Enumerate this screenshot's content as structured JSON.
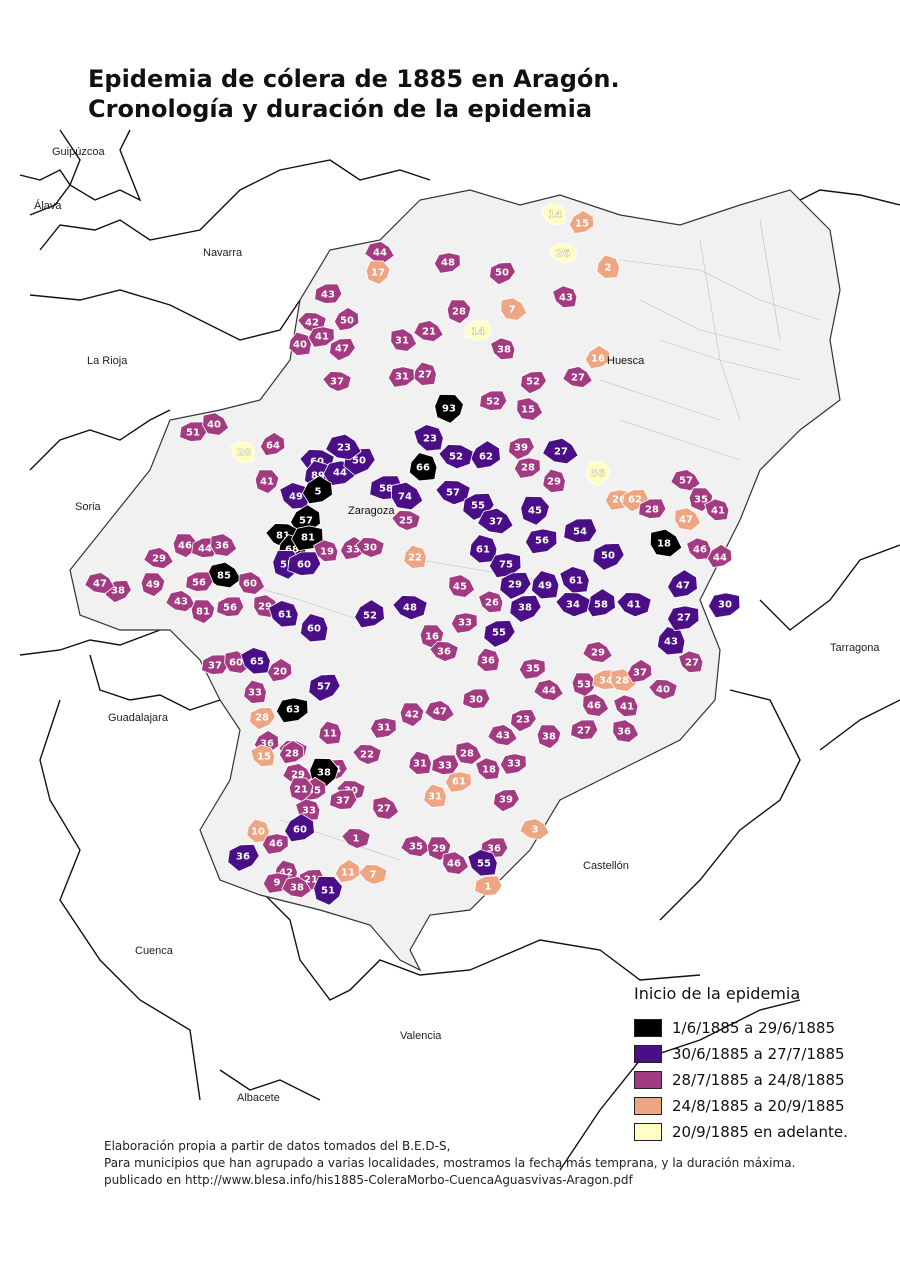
{
  "title": {
    "line1": "Epidemia de cólera de 1885 en Aragón.",
    "line2": "Cronología y duración de la epidemia"
  },
  "regions": [
    {
      "id": "guipuzcoa",
      "label": "Guipúzcoa"
    },
    {
      "id": "alava",
      "label": "Álava"
    },
    {
      "id": "navarra",
      "label": "Navarra"
    },
    {
      "id": "larioja",
      "label": "La Rioja"
    },
    {
      "id": "soria",
      "label": "Soria"
    },
    {
      "id": "guadalajara",
      "label": "Guadalajara"
    },
    {
      "id": "cuenca",
      "label": "Cuenca"
    },
    {
      "id": "valencia",
      "label": "Valencia"
    },
    {
      "id": "albacete",
      "label": "Albacete"
    },
    {
      "id": "castellon",
      "label": "Castellón"
    },
    {
      "id": "tarragona",
      "label": "Tarragona"
    }
  ],
  "towns": [
    {
      "id": "huesca",
      "label": "Huesca"
    },
    {
      "id": "zaragoza",
      "label": "Zaragoza"
    }
  ],
  "colors": {
    "black": "#000000",
    "purple": "#4a0f86",
    "magenta": "#a23b82",
    "salmon": "#eea582",
    "cream": "#ffffc4",
    "empty": "#f0f0f0",
    "border": "#222222"
  },
  "legend": {
    "title": "Inicio de la epidemia",
    "items": [
      {
        "label": "1/6/1885 a 29/6/1885",
        "color": "#000000"
      },
      {
        "label": "30/6/1885 a 27/7/1885",
        "color": "#4a0f86"
      },
      {
        "label": "28/7/1885 a 24/8/1885",
        "color": "#a23b82"
      },
      {
        "label": "24/8/1885 a 20/9/1885",
        "color": "#eea582"
      },
      {
        "label": "20/9/1885 en adelante.",
        "color": "#ffffc4"
      }
    ]
  },
  "districts": [
    {
      "cat": "cream",
      "value": "14"
    },
    {
      "cat": "salmon",
      "value": "15"
    },
    {
      "cat": "cream",
      "value": "26"
    },
    {
      "cat": "salmon",
      "value": "2"
    },
    {
      "cat": "magenta",
      "value": "48"
    },
    {
      "cat": "magenta",
      "value": "50"
    },
    {
      "cat": "magenta",
      "value": "44"
    },
    {
      "cat": "salmon",
      "value": "17"
    },
    {
      "cat": "magenta",
      "value": "43"
    },
    {
      "cat": "salmon",
      "value": "7"
    },
    {
      "cat": "magenta",
      "value": "43"
    },
    {
      "cat": "magenta",
      "value": "50"
    },
    {
      "cat": "magenta",
      "value": "42"
    },
    {
      "cat": "magenta",
      "value": "40"
    },
    {
      "cat": "magenta",
      "value": "41"
    },
    {
      "cat": "magenta",
      "value": "47"
    },
    {
      "cat": "magenta",
      "value": "21"
    },
    {
      "cat": "magenta",
      "value": "28"
    },
    {
      "cat": "cream",
      "value": "14"
    },
    {
      "cat": "magenta",
      "value": "31"
    },
    {
      "cat": "magenta",
      "value": "38"
    },
    {
      "cat": "salmon",
      "value": "16"
    },
    {
      "cat": "magenta",
      "value": "37"
    },
    {
      "cat": "magenta",
      "value": "27"
    },
    {
      "cat": "magenta",
      "value": "31"
    },
    {
      "cat": "magenta",
      "value": "52"
    },
    {
      "cat": "magenta",
      "value": "27"
    },
    {
      "cat": "black",
      "value": "93"
    },
    {
      "cat": "magenta",
      "value": "52"
    },
    {
      "cat": "magenta",
      "value": "15"
    },
    {
      "cat": "purple",
      "value": "23"
    },
    {
      "cat": "purple",
      "value": "62"
    },
    {
      "cat": "purple",
      "value": "52"
    },
    {
      "cat": "black",
      "value": "66"
    },
    {
      "cat": "magenta",
      "value": "28"
    },
    {
      "cat": "magenta",
      "value": "39"
    },
    {
      "cat": "purple",
      "value": "27"
    },
    {
      "cat": "cream",
      "value": "56"
    },
    {
      "cat": "magenta",
      "value": "51"
    },
    {
      "cat": "magenta",
      "value": "40"
    },
    {
      "cat": "cream",
      "value": "28"
    },
    {
      "cat": "magenta",
      "value": "64"
    },
    {
      "cat": "purple",
      "value": "60"
    },
    {
      "cat": "purple",
      "value": "89"
    },
    {
      "cat": "purple",
      "value": "44"
    },
    {
      "cat": "purple",
      "value": "50"
    },
    {
      "cat": "purple",
      "value": "23"
    },
    {
      "cat": "magenta",
      "value": "41"
    },
    {
      "cat": "purple",
      "value": "58"
    },
    {
      "cat": "purple",
      "value": "74"
    },
    {
      "cat": "purple",
      "value": "49"
    },
    {
      "cat": "black",
      "value": "5"
    },
    {
      "cat": "purple",
      "value": "57"
    },
    {
      "cat": "magenta",
      "value": "29"
    },
    {
      "cat": "salmon",
      "value": "26"
    },
    {
      "cat": "salmon",
      "value": "62"
    },
    {
      "cat": "magenta",
      "value": "57"
    },
    {
      "cat": "magenta",
      "value": "35"
    },
    {
      "cat": "magenta",
      "value": "28"
    },
    {
      "cat": "salmon",
      "value": "47"
    },
    {
      "cat": "magenta",
      "value": "41"
    },
    {
      "cat": "black",
      "value": "57"
    },
    {
      "cat": "black",
      "value": "81"
    },
    {
      "cat": "black",
      "value": "68"
    },
    {
      "cat": "black",
      "value": "81"
    },
    {
      "cat": "purple",
      "value": "55"
    },
    {
      "cat": "purple",
      "value": "37"
    },
    {
      "cat": "purple",
      "value": "45"
    },
    {
      "cat": "purple",
      "value": "54"
    },
    {
      "cat": "black",
      "value": "18"
    },
    {
      "cat": "magenta",
      "value": "46"
    },
    {
      "cat": "magenta",
      "value": "44"
    },
    {
      "cat": "magenta",
      "value": "25"
    },
    {
      "cat": "purple",
      "value": "61"
    },
    {
      "cat": "purple",
      "value": "56"
    },
    {
      "cat": "purple",
      "value": "50"
    },
    {
      "cat": "magenta",
      "value": "29"
    },
    {
      "cat": "magenta",
      "value": "46"
    },
    {
      "cat": "magenta",
      "value": "44"
    },
    {
      "cat": "magenta",
      "value": "36"
    },
    {
      "cat": "magenta",
      "value": "19"
    },
    {
      "cat": "magenta",
      "value": "33"
    },
    {
      "cat": "magenta",
      "value": "30"
    },
    {
      "cat": "salmon",
      "value": "22"
    },
    {
      "cat": "purple",
      "value": "75"
    },
    {
      "cat": "purple",
      "value": "29"
    },
    {
      "cat": "black",
      "value": "85"
    },
    {
      "cat": "purple",
      "value": "55"
    },
    {
      "cat": "purple",
      "value": "60"
    },
    {
      "cat": "magenta",
      "value": "45"
    },
    {
      "cat": "purple",
      "value": "61"
    },
    {
      "cat": "purple",
      "value": "47"
    },
    {
      "cat": "purple",
      "value": "41"
    },
    {
      "cat": "purple",
      "value": "49"
    },
    {
      "cat": "purple",
      "value": "30"
    },
    {
      "cat": "magenta",
      "value": "38"
    },
    {
      "cat": "magenta",
      "value": "47"
    },
    {
      "cat": "magenta",
      "value": "49"
    },
    {
      "cat": "magenta",
      "value": "56"
    },
    {
      "cat": "magenta",
      "value": "60"
    },
    {
      "cat": "magenta",
      "value": "26"
    },
    {
      "cat": "purple",
      "value": "58"
    },
    {
      "cat": "purple",
      "value": "34"
    },
    {
      "cat": "purple",
      "value": "43"
    },
    {
      "cat": "purple",
      "value": "27"
    },
    {
      "cat": "purple",
      "value": "38"
    },
    {
      "cat": "magenta",
      "value": "43"
    },
    {
      "cat": "magenta",
      "value": "81"
    },
    {
      "cat": "magenta",
      "value": "56"
    },
    {
      "cat": "magenta",
      "value": "29"
    },
    {
      "cat": "purple",
      "value": "61"
    },
    {
      "cat": "purple",
      "value": "52"
    },
    {
      "cat": "purple",
      "value": "48"
    },
    {
      "cat": "purple",
      "value": "60"
    },
    {
      "cat": "magenta",
      "value": "33"
    },
    {
      "cat": "purple",
      "value": "55"
    },
    {
      "cat": "magenta",
      "value": "29"
    },
    {
      "cat": "magenta",
      "value": "16"
    },
    {
      "cat": "magenta",
      "value": "37"
    },
    {
      "cat": "magenta",
      "value": "60"
    },
    {
      "cat": "purple",
      "value": "65"
    },
    {
      "cat": "magenta",
      "value": "20"
    },
    {
      "cat": "magenta",
      "value": "36"
    },
    {
      "cat": "magenta",
      "value": "36"
    },
    {
      "cat": "magenta",
      "value": "35"
    },
    {
      "cat": "purple",
      "value": "57"
    },
    {
      "cat": "magenta",
      "value": "44"
    },
    {
      "cat": "magenta",
      "value": "53"
    },
    {
      "cat": "salmon",
      "value": "34"
    },
    {
      "cat": "salmon",
      "value": "28"
    },
    {
      "cat": "magenta",
      "value": "27"
    },
    {
      "cat": "magenta",
      "value": "37"
    },
    {
      "cat": "magenta",
      "value": "40"
    },
    {
      "cat": "magenta",
      "value": "33"
    },
    {
      "cat": "black",
      "value": "63"
    },
    {
      "cat": "salmon",
      "value": "28"
    },
    {
      "cat": "magenta",
      "value": "47"
    },
    {
      "cat": "magenta",
      "value": "42"
    },
    {
      "cat": "magenta",
      "value": "30"
    },
    {
      "cat": "magenta",
      "value": "46"
    },
    {
      "cat": "magenta",
      "value": "41"
    },
    {
      "cat": "magenta",
      "value": "36"
    },
    {
      "cat": "magenta",
      "value": "18"
    },
    {
      "cat": "magenta",
      "value": "11"
    },
    {
      "cat": "magenta",
      "value": "31"
    },
    {
      "cat": "magenta",
      "value": "23"
    },
    {
      "cat": "magenta",
      "value": "43"
    },
    {
      "cat": "magenta",
      "value": "38"
    },
    {
      "cat": "magenta",
      "value": "27"
    },
    {
      "cat": "magenta",
      "value": "36"
    },
    {
      "cat": "salmon",
      "value": "15"
    },
    {
      "cat": "magenta",
      "value": "28"
    },
    {
      "cat": "magenta",
      "value": "22"
    },
    {
      "cat": "magenta",
      "value": "31"
    },
    {
      "cat": "magenta",
      "value": "33"
    },
    {
      "cat": "magenta",
      "value": "24"
    },
    {
      "cat": "magenta",
      "value": "29"
    },
    {
      "cat": "black",
      "value": "38"
    },
    {
      "cat": "magenta",
      "value": "33"
    },
    {
      "cat": "magenta",
      "value": "28"
    },
    {
      "cat": "magenta",
      "value": "18"
    },
    {
      "cat": "magenta",
      "value": "35"
    },
    {
      "cat": "magenta",
      "value": "30"
    },
    {
      "cat": "salmon",
      "value": "31"
    },
    {
      "cat": "salmon",
      "value": "61"
    },
    {
      "cat": "magenta",
      "value": "39"
    },
    {
      "cat": "salmon",
      "value": "3"
    },
    {
      "cat": "magenta",
      "value": "21"
    },
    {
      "cat": "magenta",
      "value": "37"
    },
    {
      "cat": "magenta",
      "value": "27"
    },
    {
      "cat": "magenta",
      "value": "33"
    },
    {
      "cat": "purple",
      "value": "60"
    },
    {
      "cat": "magenta",
      "value": "1"
    },
    {
      "cat": "salmon",
      "value": "10"
    },
    {
      "cat": "magenta",
      "value": "46"
    },
    {
      "cat": "purple",
      "value": "36"
    },
    {
      "cat": "magenta",
      "value": "35"
    },
    {
      "cat": "magenta",
      "value": "29"
    },
    {
      "cat": "magenta",
      "value": "36"
    },
    {
      "cat": "magenta",
      "value": "46"
    },
    {
      "cat": "purple",
      "value": "55"
    },
    {
      "cat": "salmon",
      "value": "11"
    },
    {
      "cat": "salmon",
      "value": "7"
    },
    {
      "cat": "magenta",
      "value": "42"
    },
    {
      "cat": "magenta",
      "value": "9"
    },
    {
      "cat": "magenta",
      "value": "21"
    },
    {
      "cat": "magenta",
      "value": "38"
    },
    {
      "cat": "purple",
      "value": "51"
    },
    {
      "cat": "salmon",
      "value": "1"
    }
  ],
  "credits": {
    "line1": "Elaboración propia a partir de datos tomados del B.E.D-S,",
    "line2": "Para municipios que han agrupado a varias localidades, mostramos la fecha más temprana, y la duración máxima.",
    "line3": "publicado en http://www.blesa.info/his1885-ColeraMorbo-CuencaAguasvivas-Aragon.pdf"
  }
}
